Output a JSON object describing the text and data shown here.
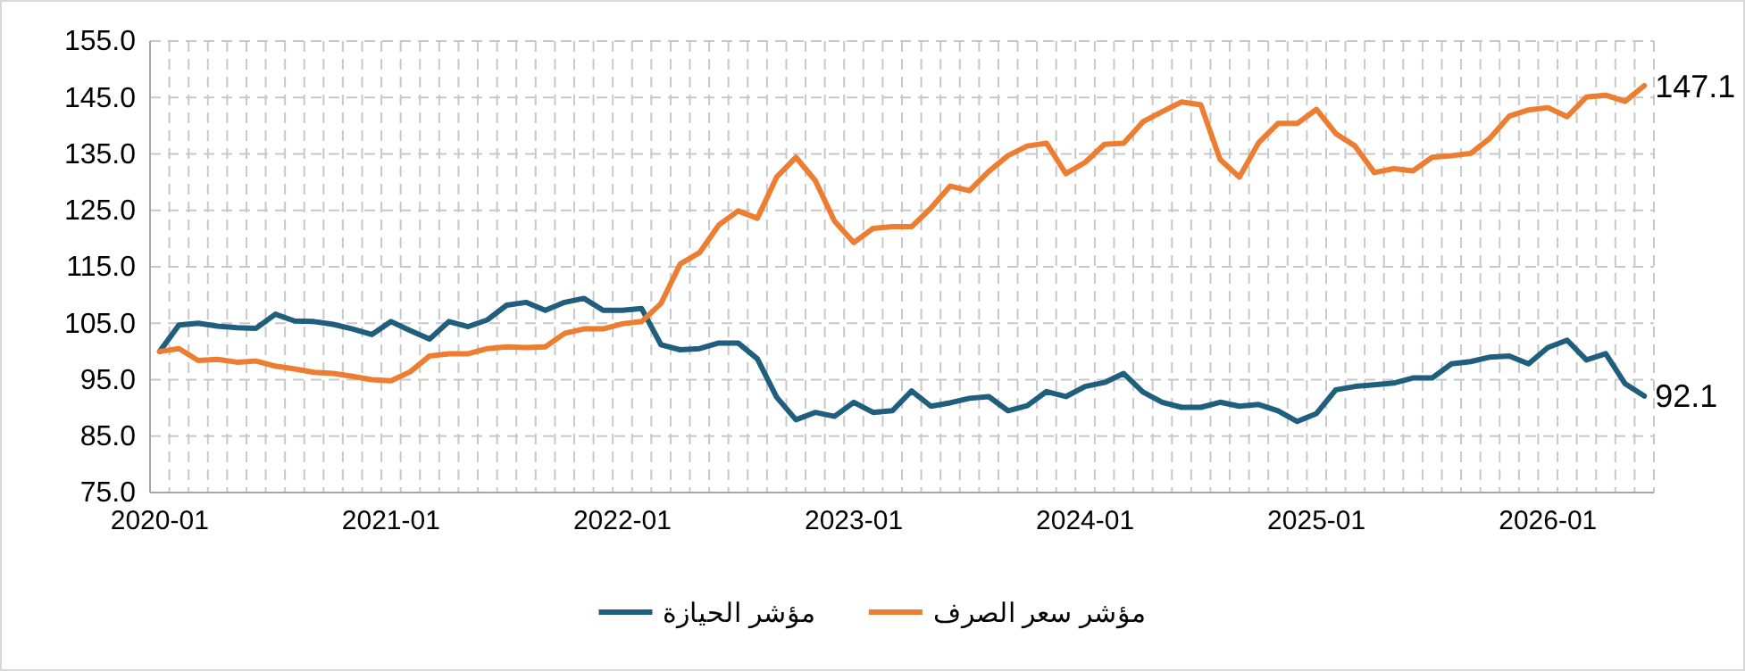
{
  "chart_data": {
    "type": "line",
    "categories": [
      "2020-01",
      null,
      null,
      null,
      null,
      null,
      null,
      null,
      null,
      null,
      null,
      null,
      "2021-01",
      null,
      null,
      null,
      null,
      null,
      null,
      null,
      null,
      null,
      null,
      null,
      "2022-01",
      null,
      null,
      null,
      null,
      null,
      null,
      null,
      null,
      null,
      null,
      null,
      "2023-01",
      null,
      null,
      null,
      null,
      null,
      null,
      null,
      null,
      null,
      null,
      null,
      "2024-01",
      null,
      null,
      null,
      null,
      null,
      null,
      null,
      null,
      null,
      null,
      null,
      "2025-01",
      null,
      null,
      null,
      null,
      null,
      null,
      null,
      null,
      null,
      null,
      null,
      "2026-01",
      null,
      null,
      null,
      null,
      null
    ],
    "series": [
      {
        "name": "مؤشر الحيازة",
        "color": "#1f5f7d",
        "values": [
          100.0,
          104.7,
          105.0,
          104.5,
          104.2,
          104.1,
          106.6,
          105.4,
          105.3,
          104.8,
          104.0,
          103.0,
          105.3,
          103.7,
          102.2,
          105.3,
          104.4,
          105.6,
          108.2,
          108.7,
          107.3,
          108.7,
          109.4,
          107.3,
          107.3,
          107.6,
          101.2,
          100.3,
          100.5,
          101.5,
          101.5,
          98.7,
          91.9,
          87.9,
          89.2,
          88.5,
          91.0,
          89.2,
          89.5,
          93.0,
          90.3,
          90.9,
          91.7,
          92.0,
          89.5,
          90.4,
          92.9,
          92.0,
          93.8,
          94.5,
          96.1,
          92.8,
          91.0,
          90.1,
          90.1,
          91.0,
          90.3,
          90.6,
          89.5,
          87.6,
          89.0,
          93.2,
          93.8,
          94.1,
          94.4,
          95.3,
          95.3,
          97.8,
          98.2,
          99.0,
          99.2,
          97.8,
          100.7,
          102.0,
          98.5,
          99.6,
          94.3,
          92.1
        ],
        "value_labels": [
          null,
          null,
          null,
          null,
          null,
          null,
          null,
          null,
          null,
          null,
          null,
          null,
          null,
          null,
          null,
          null,
          null,
          null,
          null,
          null,
          null,
          null,
          null,
          null,
          null,
          null,
          null,
          null,
          null,
          null,
          null,
          null,
          null,
          null,
          null,
          null,
          null,
          null,
          null,
          null,
          null,
          null,
          null,
          null,
          null,
          null,
          null,
          null,
          null,
          null,
          null,
          null,
          null,
          null,
          null,
          null,
          null,
          null,
          null,
          null,
          null,
          null,
          null,
          null,
          null,
          null,
          null,
          null,
          null,
          null,
          null,
          null,
          null,
          null,
          null,
          null,
          null,
          "92.1"
        ]
      },
      {
        "name": "مؤشر سعر الصرف",
        "color": "#ed7d31",
        "values": [
          100.0,
          100.5,
          98.4,
          98.6,
          98.1,
          98.3,
          97.4,
          96.9,
          96.3,
          96.1,
          95.6,
          95.0,
          94.8,
          96.4,
          99.2,
          99.6,
          99.6,
          100.5,
          100.8,
          100.7,
          100.8,
          103.2,
          104.0,
          104.0,
          104.9,
          105.3,
          108.5,
          115.5,
          117.5,
          122.4,
          124.9,
          123.6,
          130.9,
          134.4,
          130.3,
          123.1,
          119.3,
          121.8,
          122.1,
          122.1,
          125.4,
          129.3,
          128.5,
          131.9,
          134.7,
          136.4,
          136.9,
          131.5,
          133.5,
          136.7,
          136.9,
          140.7,
          142.5,
          144.2,
          143.7,
          134.0,
          130.9,
          137.0,
          140.4,
          140.4,
          142.9,
          138.6,
          136.4,
          131.7,
          132.4,
          132.0,
          134.4,
          134.7,
          135.1,
          137.8,
          141.7,
          142.8,
          143.2,
          141.6,
          145.1,
          145.4,
          144.3,
          147.1
        ],
        "value_labels": [
          null,
          null,
          null,
          null,
          null,
          null,
          null,
          null,
          null,
          null,
          null,
          null,
          null,
          null,
          null,
          null,
          null,
          null,
          null,
          null,
          null,
          null,
          null,
          null,
          null,
          null,
          null,
          null,
          null,
          null,
          null,
          null,
          null,
          null,
          null,
          null,
          null,
          null,
          null,
          null,
          null,
          null,
          null,
          null,
          null,
          null,
          null,
          null,
          null,
          null,
          null,
          null,
          null,
          null,
          null,
          null,
          null,
          null,
          null,
          null,
          null,
          null,
          null,
          null,
          null,
          null,
          null,
          null,
          null,
          null,
          null,
          null,
          null,
          null,
          null,
          null,
          null,
          "147.1"
        ]
      }
    ],
    "ylim": [
      75,
      155
    ],
    "yticks": [
      {
        "value": 75,
        "label": "75.0"
      },
      {
        "value": 85,
        "label": "85.0"
      },
      {
        "value": 95,
        "label": "95.0"
      },
      {
        "value": 105,
        "label": "105.0"
      },
      {
        "value": 115,
        "label": "115.0"
      },
      {
        "value": 125,
        "label": "125.0"
      },
      {
        "value": 135,
        "label": "135.0"
      },
      {
        "value": 145,
        "label": "145.0"
      },
      {
        "value": 155,
        "label": "155.0"
      }
    ],
    "grid": true,
    "legend": "bottom",
    "marker": "none",
    "line_style": "solid"
  }
}
